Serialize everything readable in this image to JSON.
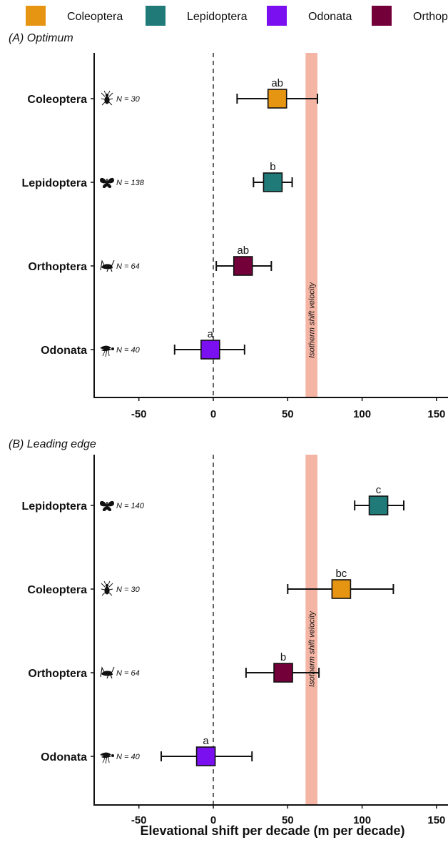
{
  "legend": [
    {
      "name": "Coleoptera",
      "color": "#E69512"
    },
    {
      "name": "Lepidoptera",
      "color": "#1F7A78"
    },
    {
      "name": "Odonata",
      "color": "#7A0FF0"
    },
    {
      "name": "Orthoptera",
      "color": "#740039"
    }
  ],
  "xlabel": "Elevational shift per decade (m per decade)",
  "chart_data": [
    {
      "type": "scatter",
      "title": "(A) Optimum",
      "band_label": "Isotherm shift velocity",
      "band_range": [
        62,
        70
      ],
      "zero_line": 0,
      "xlim": [
        -80,
        158
      ],
      "xticks": [
        -50,
        0,
        50,
        100,
        150
      ],
      "xtick_labels": [
        "-50",
        "0",
        "50",
        "100",
        "150"
      ],
      "rows": [
        {
          "category": "Coleoptera",
          "n": "N = 30",
          "icon": "beetle-icon",
          "mean": 43,
          "low": 16,
          "high": 70,
          "sig": "ab",
          "color": "#E69512"
        },
        {
          "category": "Lepidoptera",
          "n": "N = 138",
          "icon": "butterfly-icon",
          "mean": 40,
          "low": 27,
          "high": 53,
          "sig": "b",
          "color": "#1F7A78"
        },
        {
          "category": "Orthoptera",
          "n": "N = 64",
          "icon": "grasshopper-icon",
          "mean": 20,
          "low": 2,
          "high": 39,
          "sig": "ab",
          "color": "#740039"
        },
        {
          "category": "Odonata",
          "n": "N = 40",
          "icon": "dragonfly-icon",
          "mean": -2,
          "low": -26,
          "high": 21,
          "sig": "a",
          "color": "#7A0FF0"
        }
      ]
    },
    {
      "type": "scatter",
      "title": "(B) Leading edge",
      "band_label": "Isotherm shift velocity",
      "band_range": [
        62,
        70
      ],
      "zero_line": 0,
      "xlim": [
        -80,
        158
      ],
      "xticks": [
        -50,
        0,
        50,
        100,
        150
      ],
      "xtick_labels": [
        "-50",
        "0",
        "50",
        "100",
        "150"
      ],
      "rows": [
        {
          "category": "Lepidoptera",
          "n": "N = 140",
          "icon": "butterfly-icon",
          "mean": 111,
          "low": 95,
          "high": 128,
          "sig": "c",
          "color": "#1F7A78"
        },
        {
          "category": "Coleoptera",
          "n": "N = 30",
          "icon": "beetle-icon",
          "mean": 86,
          "low": 50,
          "high": 121,
          "sig": "bc",
          "color": "#E69512"
        },
        {
          "category": "Orthoptera",
          "n": "N = 64",
          "icon": "grasshopper-icon",
          "mean": 47,
          "low": 22,
          "high": 71,
          "sig": "b",
          "color": "#740039"
        },
        {
          "category": "Odonata",
          "n": "N = 40",
          "icon": "dragonfly-icon",
          "mean": -5,
          "low": -35,
          "high": 26,
          "sig": "a",
          "color": "#7A0FF0"
        }
      ]
    }
  ]
}
